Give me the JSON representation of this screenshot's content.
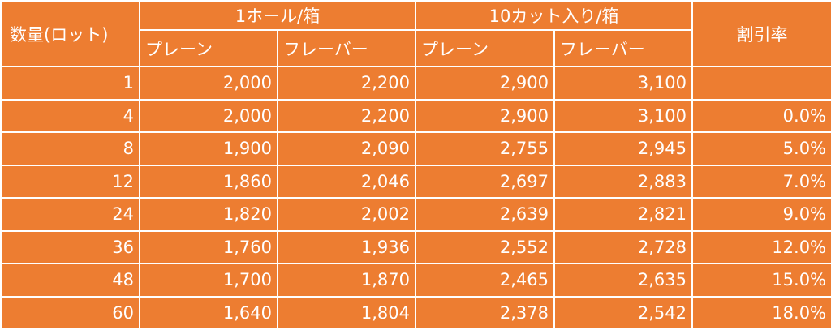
{
  "header": {
    "quantity": "数量(ロット)",
    "group_whole": "1ホール/箱",
    "group_cut": "10カット入り/箱",
    "discount": "割引率",
    "plain": "プレーン",
    "flavor": "フレーバー"
  },
  "rows": [
    {
      "qty": "1",
      "whole_plain": "2,000",
      "whole_flavor": "2,200",
      "cut_plain": "2,900",
      "cut_flavor": "3,100",
      "discount": ""
    },
    {
      "qty": "4",
      "whole_plain": "2,000",
      "whole_flavor": "2,200",
      "cut_plain": "2,900",
      "cut_flavor": "3,100",
      "discount": "0.0%"
    },
    {
      "qty": "8",
      "whole_plain": "1,900",
      "whole_flavor": "2,090",
      "cut_plain": "2,755",
      "cut_flavor": "2,945",
      "discount": "5.0%"
    },
    {
      "qty": "12",
      "whole_plain": "1,860",
      "whole_flavor": "2,046",
      "cut_plain": "2,697",
      "cut_flavor": "2,883",
      "discount": "7.0%"
    },
    {
      "qty": "24",
      "whole_plain": "1,820",
      "whole_flavor": "2,002",
      "cut_plain": "2,639",
      "cut_flavor": "2,821",
      "discount": "9.0%"
    },
    {
      "qty": "36",
      "whole_plain": "1,760",
      "whole_flavor": "1,936",
      "cut_plain": "2,552",
      "cut_flavor": "2,728",
      "discount": "12.0%"
    },
    {
      "qty": "48",
      "whole_plain": "1,700",
      "whole_flavor": "1,870",
      "cut_plain": "2,465",
      "cut_flavor": "2,635",
      "discount": "15.0%"
    },
    {
      "qty": "60",
      "whole_plain": "1,640",
      "whole_flavor": "1,804",
      "cut_plain": "2,378",
      "cut_flavor": "2,542",
      "discount": "18.0%"
    }
  ],
  "colors": {
    "cell_background": "#ED7D31",
    "text": "#FFFFFF",
    "grid_lines": "#FFFFFF"
  }
}
